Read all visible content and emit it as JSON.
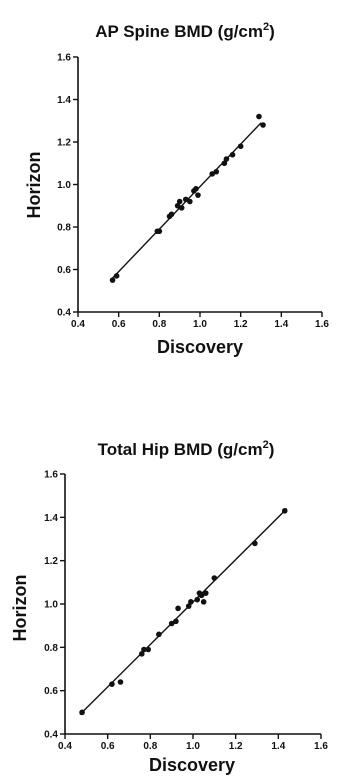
{
  "chart_data": [
    {
      "type": "scatter",
      "title": "AP Spine  BMD (g/cm",
      "title_superscript": "2",
      "title_suffix": ")",
      "xlabel": "Discovery",
      "ylabel": "Horizon",
      "xlim": [
        0.4,
        1.6
      ],
      "ylim": [
        0.4,
        1.6
      ],
      "xticks": [
        "0.4",
        "0.6",
        "0.8",
        "1.0",
        "1.2",
        "1.4",
        "1.6"
      ],
      "yticks": [
        "0.4",
        "0.6",
        "0.8",
        "1.0",
        "1.2",
        "1.4",
        "1.6"
      ],
      "grid": false,
      "regression_line": {
        "x": [
          0.56,
          1.3
        ],
        "y": [
          0.55,
          1.29
        ]
      },
      "points": [
        {
          "x": 0.57,
          "y": 0.55
        },
        {
          "x": 0.59,
          "y": 0.57
        },
        {
          "x": 0.79,
          "y": 0.78
        },
        {
          "x": 0.8,
          "y": 0.78
        },
        {
          "x": 0.85,
          "y": 0.85
        },
        {
          "x": 0.86,
          "y": 0.86
        },
        {
          "x": 0.89,
          "y": 0.9
        },
        {
          "x": 0.9,
          "y": 0.92
        },
        {
          "x": 0.91,
          "y": 0.89
        },
        {
          "x": 0.93,
          "y": 0.93
        },
        {
          "x": 0.95,
          "y": 0.92
        },
        {
          "x": 0.97,
          "y": 0.97
        },
        {
          "x": 0.98,
          "y": 0.98
        },
        {
          "x": 0.99,
          "y": 0.95
        },
        {
          "x": 1.06,
          "y": 1.05
        },
        {
          "x": 1.08,
          "y": 1.06
        },
        {
          "x": 1.12,
          "y": 1.1
        },
        {
          "x": 1.13,
          "y": 1.12
        },
        {
          "x": 1.16,
          "y": 1.14
        },
        {
          "x": 1.2,
          "y": 1.18
        },
        {
          "x": 1.29,
          "y": 1.32
        },
        {
          "x": 1.31,
          "y": 1.28
        }
      ]
    },
    {
      "type": "scatter",
      "title": "Total  Hip  BMD (g/cm",
      "title_superscript": "2",
      "title_suffix": ")",
      "xlabel": "Discovery",
      "ylabel": "Horizon",
      "xlim": [
        0.4,
        1.6
      ],
      "ylim": [
        0.4,
        1.6
      ],
      "xticks": [
        "0.4",
        "0.6",
        "0.8",
        "1.0",
        "1.2",
        "1.4",
        "1.6"
      ],
      "yticks": [
        "0.4",
        "0.6",
        "0.8",
        "1.0",
        "1.2",
        "1.4",
        "1.6"
      ],
      "grid": false,
      "regression_line": {
        "x": [
          0.47,
          1.44
        ],
        "y": [
          0.49,
          1.44
        ]
      },
      "points": [
        {
          "x": 0.48,
          "y": 0.5
        },
        {
          "x": 0.62,
          "y": 0.63
        },
        {
          "x": 0.66,
          "y": 0.64
        },
        {
          "x": 0.76,
          "y": 0.77
        },
        {
          "x": 0.77,
          "y": 0.79
        },
        {
          "x": 0.79,
          "y": 0.79
        },
        {
          "x": 0.84,
          "y": 0.86
        },
        {
          "x": 0.9,
          "y": 0.91
        },
        {
          "x": 0.92,
          "y": 0.92
        },
        {
          "x": 0.93,
          "y": 0.98
        },
        {
          "x": 0.98,
          "y": 0.99
        },
        {
          "x": 0.99,
          "y": 1.01
        },
        {
          "x": 1.02,
          "y": 1.02
        },
        {
          "x": 1.03,
          "y": 1.05
        },
        {
          "x": 1.04,
          "y": 1.04
        },
        {
          "x": 1.05,
          "y": 1.01
        },
        {
          "x": 1.06,
          "y": 1.05
        },
        {
          "x": 1.1,
          "y": 1.12
        },
        {
          "x": 1.29,
          "y": 1.28
        },
        {
          "x": 1.43,
          "y": 1.43
        }
      ]
    }
  ]
}
